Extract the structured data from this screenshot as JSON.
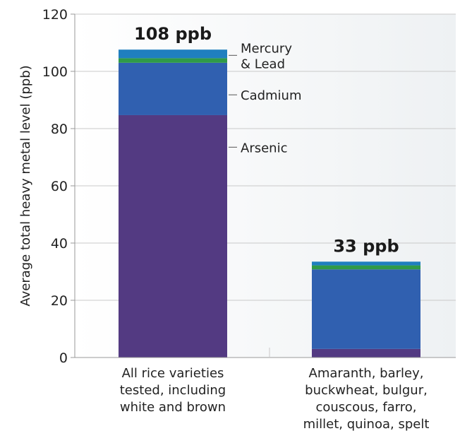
{
  "chart_data": {
    "type": "bar",
    "stacked": true,
    "ylabel": "Average total heavy metal level (ppb)",
    "ylim": [
      0,
      120
    ],
    "yticks": [
      0,
      20,
      40,
      60,
      80,
      100,
      120
    ],
    "grid": true,
    "categories": [
      [
        "All rice varieties",
        "tested, including",
        "white and brown"
      ],
      [
        "Amaranth, barley,",
        "buckwheat, bulgur,",
        "couscous, farro,",
        "millet, quinoa, spelt"
      ]
    ],
    "totals": [
      "108 ppb",
      "33 ppb"
    ],
    "series": [
      {
        "name": "Arsenic",
        "color": "#533a82",
        "values": [
          84.7,
          3.0
        ]
      },
      {
        "name": "Cadmium",
        "color": "#3060b0",
        "values": [
          18.3,
          27.8
        ]
      },
      {
        "name": "Mercury & Lead (green)",
        "color": "#2f9a48",
        "values": [
          1.6,
          1.4
        ]
      },
      {
        "name": "Mercury & Lead (blue)",
        "color": "#1f7fbf",
        "values": [
          3.0,
          1.3
        ]
      }
    ],
    "annotations": [
      {
        "label": [
          "Mercury",
          "& Lead"
        ],
        "value": 105.6
      },
      {
        "label": [
          "Cadmium"
        ],
        "value": 91.8
      },
      {
        "label": [
          "Arsenic"
        ],
        "value": 73.5
      }
    ],
    "colors": {
      "background_gradient_end": "#eef1f3",
      "grid": "#c9c9c9",
      "axis": "#999999"
    }
  }
}
